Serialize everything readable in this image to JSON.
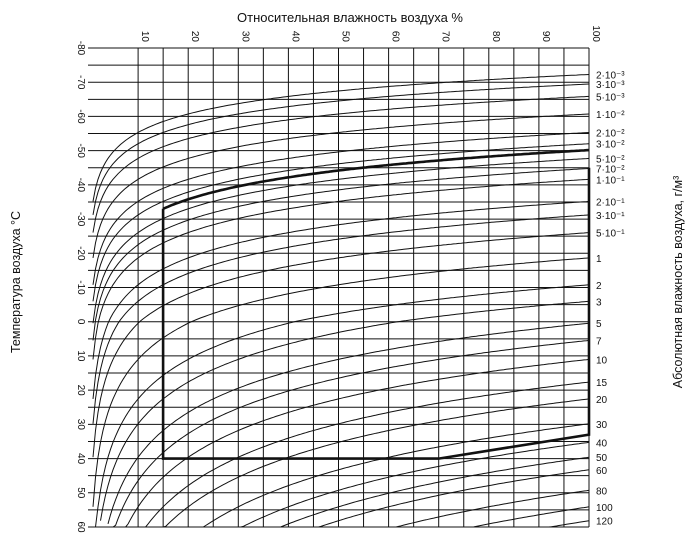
{
  "chart_data": {
    "type": "line",
    "title": "Относительная влажность воздуха %",
    "xlabel": "Относительная влажность воздуха %",
    "ylabel": "Температура воздуха °C",
    "y2label": "Абсолютная влажность воздуха, г/м³",
    "x_ticks": [
      "10",
      "20",
      "30",
      "40",
      "50",
      "60",
      "70",
      "80",
      "90",
      "100"
    ],
    "x_range": [
      0,
      100
    ],
    "y_ticks": [
      "-80",
      "-70",
      "-60",
      "-50",
      "-40",
      "-30",
      "-20",
      "-10",
      "0",
      "10",
      "20",
      "30",
      "40",
      "50",
      "60"
    ],
    "y_range": [
      -80,
      60
    ],
    "y_inverted": true,
    "grid": true,
    "series_note_values": [
      0.002,
      0.003,
      0.005,
      0.01,
      0.02,
      0.03,
      0.05,
      0.07,
      0.1,
      0.2,
      0.3,
      0.5,
      1,
      2,
      3,
      5,
      7,
      10,
      15,
      20,
      30,
      40,
      50,
      60,
      80,
      100,
      120
    ],
    "right_labels": [
      "2·10⁻³",
      "3·10⁻³",
      "5·10⁻³",
      "1·10⁻²",
      "2·10⁻²",
      "3·10⁻²",
      "5·10⁻²",
      "7·10⁻²",
      "1·10⁻¹",
      "2·10⁻¹",
      "3·10⁻¹",
      "5·10⁻¹",
      "1",
      "2",
      "3",
      "5",
      "7",
      "10",
      "15",
      "20",
      "30",
      "40",
      "50",
      "60",
      "80",
      "100",
      "120"
    ],
    "highlighted_region": {
      "description_from_figure": "bold outline",
      "points": [
        [
          15,
          -33
        ],
        [
          15,
          40
        ],
        [
          70,
          40
        ],
        [
          100,
          33
        ],
        [
          100,
          -45
        ]
      ]
    }
  }
}
